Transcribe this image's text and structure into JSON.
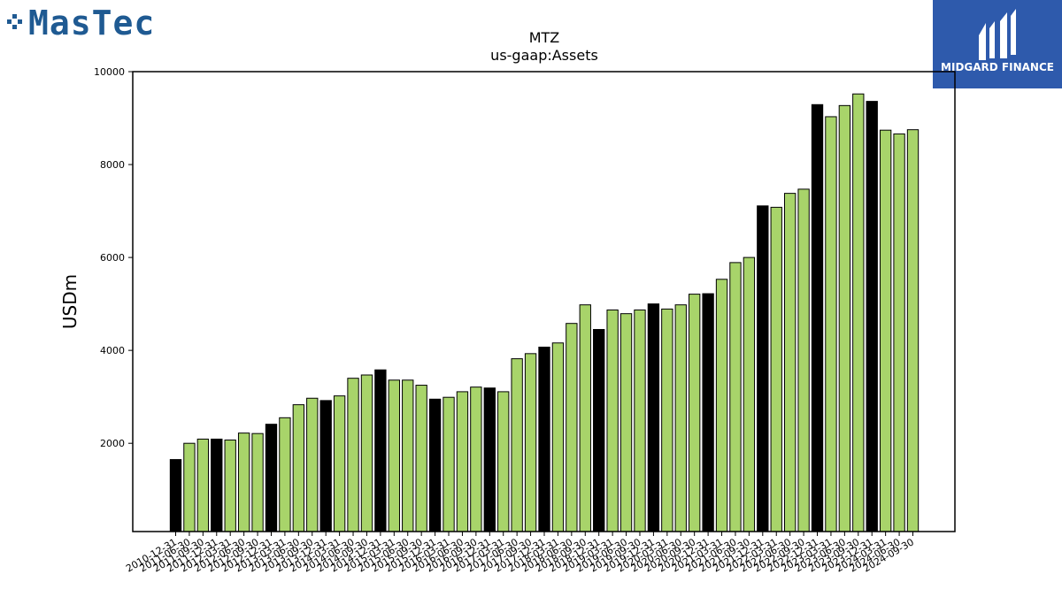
{
  "branding": {
    "left_logo": "MasTec",
    "right_logo": "MIDGARD FINANCE",
    "left_color": "#1f5a92",
    "right_bg": "#2e5aac"
  },
  "colors": {
    "bar_fill": "#a8d46a",
    "bar_highlight": "#000000",
    "bar_edge": "#000000"
  },
  "chart_data": {
    "type": "bar",
    "title": "MTZ",
    "subtitle": "us-gaap:Assets",
    "xlabel": "",
    "ylabel": "USDm",
    "ylim": [
      100,
      10000
    ],
    "yticks": [
      2000,
      4000,
      6000,
      8000,
      10000
    ],
    "grid": false,
    "categories": [
      "2010-12-31",
      "2011-06-30",
      "2011-09-30",
      "2011-12-31",
      "2012-03-31",
      "2012-06-30",
      "2012-09-30",
      "2012-12-31",
      "2013-03-31",
      "2013-06-30",
      "2013-09-30",
      "2013-12-31",
      "2014-03-31",
      "2014-06-30",
      "2014-09-30",
      "2014-12-31",
      "2015-03-31",
      "2015-06-30",
      "2015-09-30",
      "2015-12-31",
      "2016-03-31",
      "2016-06-30",
      "2016-09-30",
      "2016-12-31",
      "2017-03-31",
      "2017-06-30",
      "2017-09-30",
      "2017-12-31",
      "2018-03-31",
      "2018-06-30",
      "2018-09-30",
      "2018-12-31",
      "2019-03-31",
      "2019-06-30",
      "2019-09-30",
      "2019-12-31",
      "2020-03-31",
      "2020-06-30",
      "2020-09-30",
      "2020-12-31",
      "2021-03-31",
      "2021-06-30",
      "2021-09-30",
      "2021-12-31",
      "2022-03-31",
      "2022-06-30",
      "2022-09-30",
      "2022-12-31",
      "2023-03-31",
      "2023-06-30",
      "2023-09-30",
      "2023-12-31",
      "2024-03-31",
      "2024-06-30",
      "2024-09-30"
    ],
    "values": [
      1650,
      2000,
      2090,
      2090,
      2070,
      2220,
      2210,
      2410,
      2550,
      2830,
      2970,
      2920,
      3020,
      3400,
      3470,
      3580,
      3360,
      3360,
      3250,
      2950,
      2990,
      3110,
      3210,
      3190,
      3110,
      3820,
      3930,
      4070,
      4160,
      4580,
      4980,
      4450,
      4870,
      4790,
      4870,
      5000,
      4890,
      4980,
      5210,
      5220,
      5530,
      5890,
      6000,
      7110,
      7080,
      7380,
      7470,
      9290,
      9030,
      9270,
      9520,
      9360,
      8740,
      8660,
      8750
    ],
    "highlight": [
      true,
      false,
      false,
      true,
      false,
      false,
      false,
      true,
      false,
      false,
      false,
      true,
      false,
      false,
      false,
      true,
      false,
      false,
      false,
      true,
      false,
      false,
      false,
      true,
      false,
      false,
      false,
      true,
      false,
      false,
      false,
      true,
      false,
      false,
      false,
      true,
      false,
      false,
      false,
      true,
      false,
      false,
      false,
      true,
      false,
      false,
      false,
      true,
      false,
      false,
      false,
      true,
      false,
      false,
      false
    ]
  }
}
